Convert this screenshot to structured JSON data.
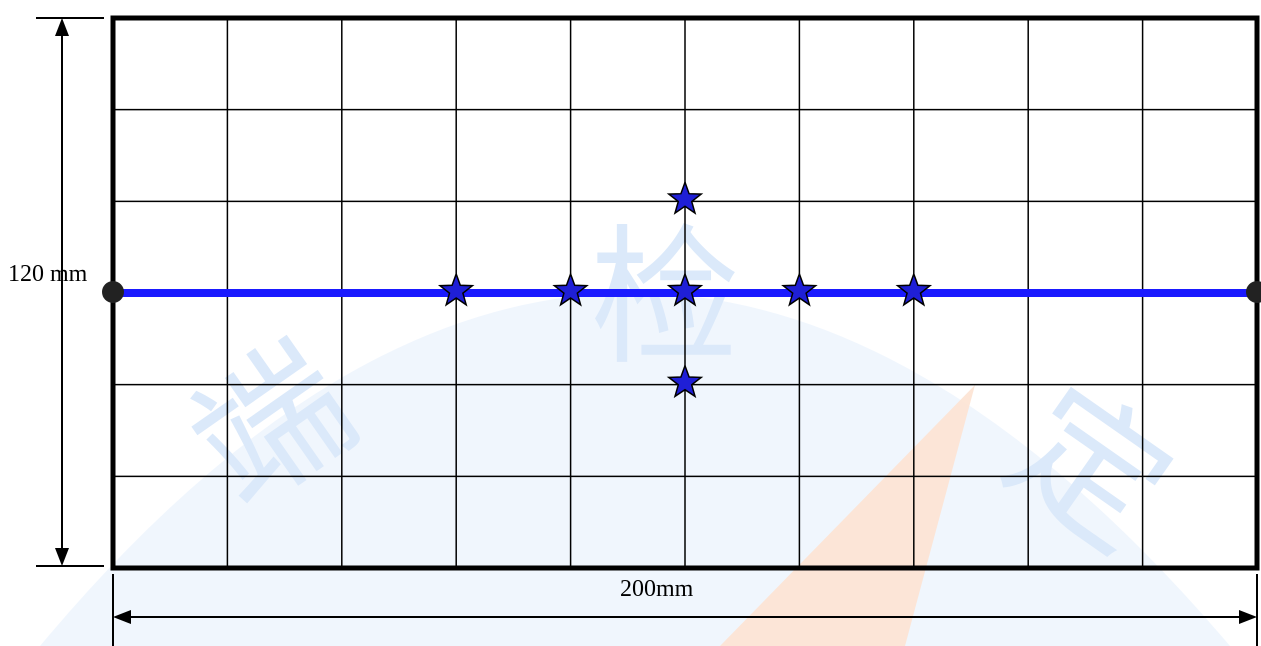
{
  "dimensions": {
    "height_label": "120 mm",
    "width_label": "200mm"
  },
  "grid": {
    "columns": 10,
    "rows": 6
  },
  "colors": {
    "grid_line": "#000000",
    "frame": "#000000",
    "center_line": "#1a1aff",
    "star_fill": "#1f1fd6",
    "star_stroke": "#000000",
    "endpoint": "#222222",
    "watermark_blue": "#d6e6fa",
    "watermark_orange": "#fde0cf"
  },
  "star_markers": [
    {
      "col": 3,
      "row": 2
    },
    {
      "col": 4,
      "row": 2
    },
    {
      "col": 5,
      "row": 1
    },
    {
      "col": 5,
      "row": 2
    },
    {
      "col": 5,
      "row": 3
    },
    {
      "col": 6,
      "row": 2
    },
    {
      "col": 7,
      "row": 2
    }
  ],
  "watermark_text": [
    "端",
    "检",
    "定"
  ]
}
